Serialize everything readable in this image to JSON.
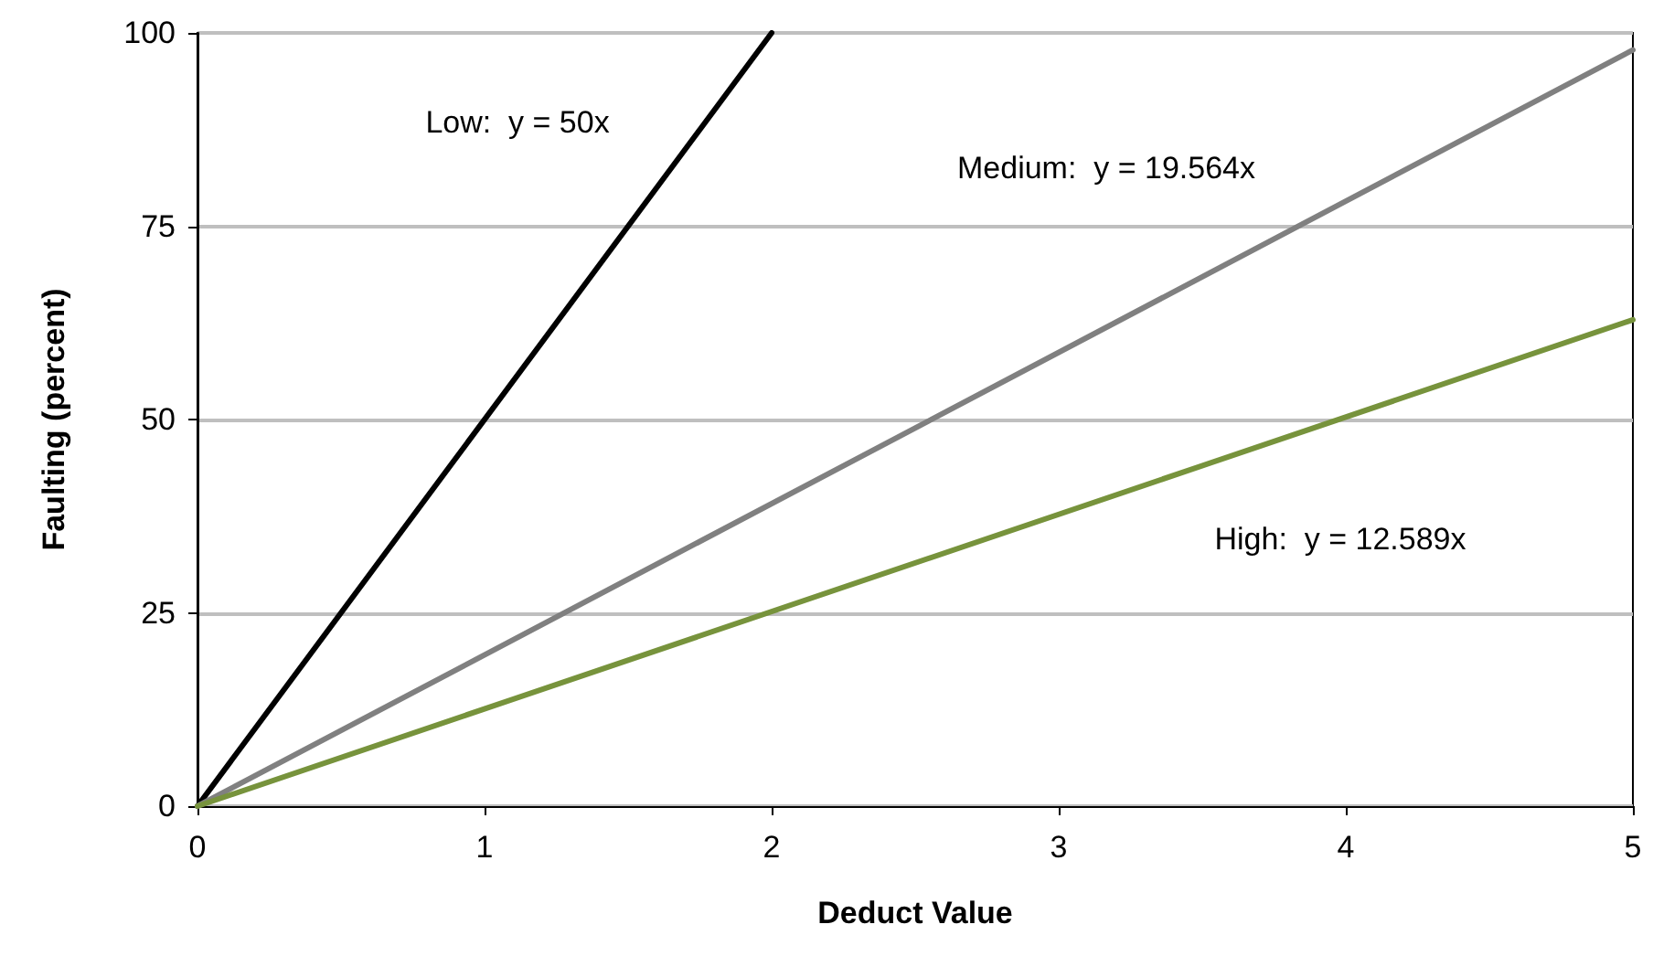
{
  "chart_data": {
    "type": "line",
    "xlabel": "Deduct Value",
    "ylabel": "Faulting (percent)",
    "series": [
      {
        "color": "#000000",
        "x": [
          0,
          2
        ],
        "values": [
          0,
          100
        ]
      },
      {
        "color": "#808080",
        "x": [
          0,
          5
        ],
        "values": [
          0,
          97.8
        ]
      },
      {
        "color": "#77933c",
        "x": [
          0,
          5
        ],
        "values": [
          0,
          62.9
        ]
      }
    ],
    "annotations": [
      "Low:  y = 50x",
      "Medium:  y = 19.564x",
      "High:  y = 12.589x"
    ],
    "xlim": [
      0,
      5
    ],
    "xticks": [
      0,
      1,
      2,
      3,
      4,
      5
    ],
    "ylim": [
      0,
      100
    ],
    "yticks": [
      0,
      25,
      50,
      75,
      100
    ],
    "grid": "y",
    "marker": "none",
    "line_style": "solid"
  }
}
